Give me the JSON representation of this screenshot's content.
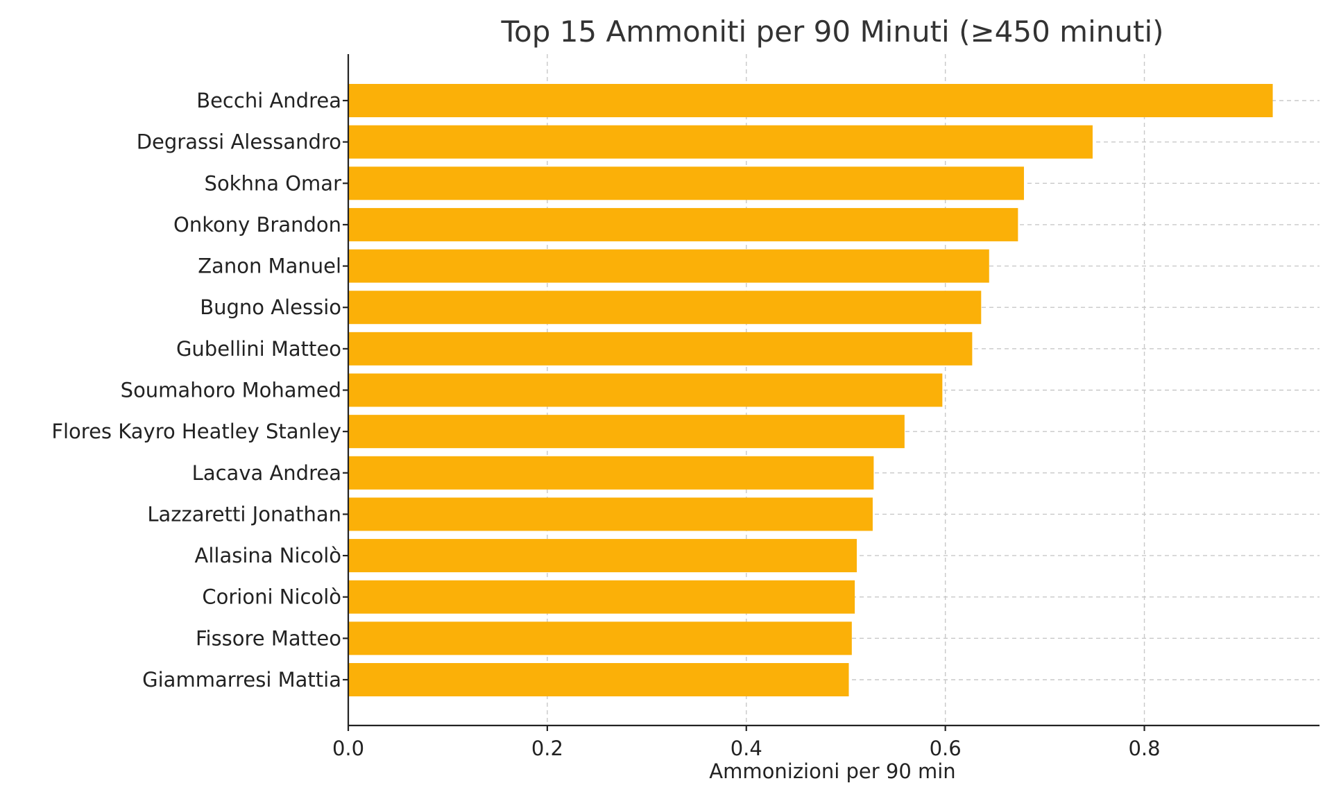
{
  "chart_data": {
    "type": "bar",
    "orientation": "horizontal",
    "title": "Top 15 Ammoniti per 90 Minuti (≥450 minuti)",
    "xlabel": "Ammonizioni per 90 min",
    "ylabel": "",
    "categories": [
      "Becchi Andrea",
      "Degrassi Alessandro",
      "Sokhna Omar",
      "Onkony Brandon",
      "Zanon Manuel",
      "Bugno Alessio",
      "Gubellini Matteo",
      "Soumahoro Mohamed",
      "Flores Kayro Heatley Stanley",
      "Lacava Andrea",
      "Lazzaretti Jonathan",
      "Allasina Nicolò",
      "Corioni Nicolò",
      "Fissore Matteo",
      "Giammarresi Mattia"
    ],
    "values": [
      0.929,
      0.748,
      0.679,
      0.673,
      0.644,
      0.636,
      0.627,
      0.597,
      0.559,
      0.528,
      0.527,
      0.511,
      0.509,
      0.506,
      0.503
    ],
    "xlim": [
      0,
      0.976
    ],
    "xticks": [
      0.0,
      0.2,
      0.4,
      0.6,
      0.8
    ],
    "xtick_labels": [
      "0.0",
      "0.2",
      "0.4",
      "0.6",
      "0.8"
    ],
    "grid": true,
    "bar_color": "#FBB008"
  }
}
